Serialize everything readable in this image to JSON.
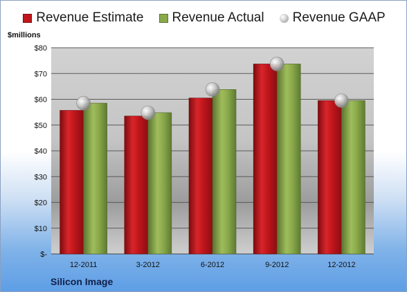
{
  "chart_data": {
    "type": "bar",
    "unit_label": "$millions",
    "categories": [
      "12-2011",
      "3-2012",
      "6-2012",
      "9-2012",
      "12-2012"
    ],
    "series": [
      {
        "name": "Revenue Estimate",
        "type": "bar",
        "color": "#c0161b",
        "values": [
          55.7,
          53.5,
          60.5,
          73.7,
          59.5
        ]
      },
      {
        "name": "Revenue Actual",
        "type": "bar",
        "color": "#8aa94a",
        "values": [
          58.5,
          54.8,
          63.8,
          73.7,
          59.5
        ]
      },
      {
        "name": "Revenue GAAP",
        "type": "marker",
        "color": "#b8b8b8",
        "values": [
          58.5,
          54.8,
          63.8,
          73.7,
          59.5
        ]
      }
    ],
    "ylim": [
      0,
      80
    ],
    "yticks": [
      0,
      10,
      20,
      30,
      40,
      50,
      60,
      70,
      80
    ],
    "ytick_labels": [
      "$-",
      "$10",
      "$20",
      "$30",
      "$40",
      "$50",
      "$60",
      "$70",
      "$80"
    ],
    "grid": true,
    "legend_position": "top",
    "company": "Silicon Image"
  }
}
